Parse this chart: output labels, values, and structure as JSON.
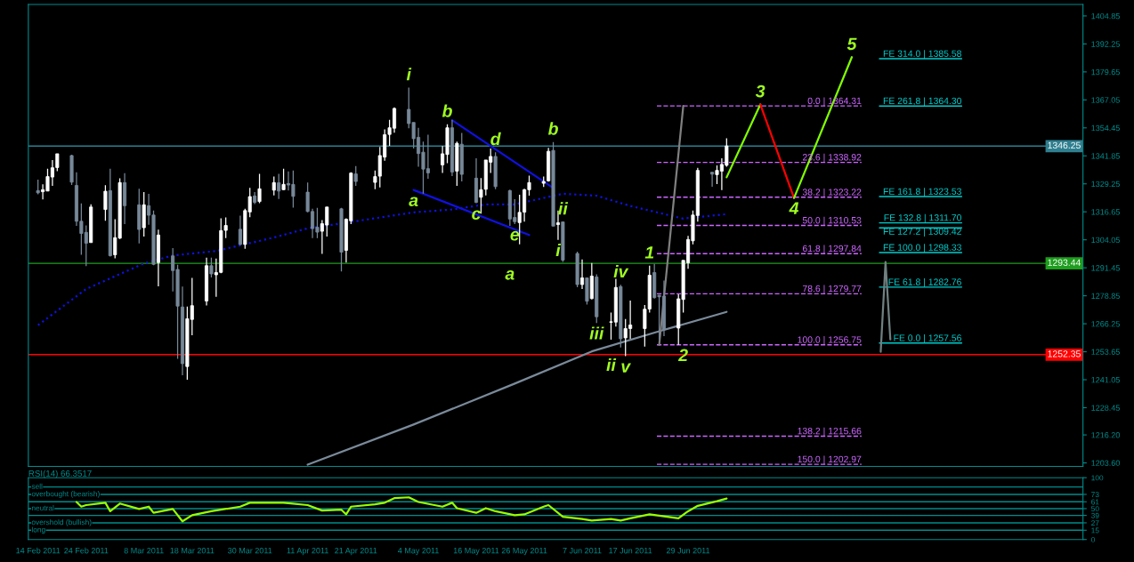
{
  "chart_data": [
    {
      "type": "candlestick",
      "tick_labels": "y",
      "x": [
        "2011-02-14",
        "2011-02-15",
        "2011-02-16",
        "2011-02-17",
        "2011-02-18",
        "2011-02-21",
        "2011-02-22",
        "2011-02-23",
        "2011-02-24",
        "2011-02-25",
        "2011-02-28",
        "2011-03-01",
        "2011-03-02",
        "2011-03-03",
        "2011-03-04",
        "2011-03-07",
        "2011-03-08",
        "2011-03-09",
        "2011-03-10",
        "2011-03-11",
        "2011-03-14",
        "2011-03-15",
        "2011-03-16",
        "2011-03-17",
        "2011-03-18",
        "2011-03-21",
        "2011-03-22",
        "2011-03-23",
        "2011-03-24",
        "2011-03-25",
        "2011-03-28",
        "2011-03-29",
        "2011-03-30",
        "2011-03-31",
        "2011-04-01",
        "2011-04-04",
        "2011-04-05",
        "2011-04-06",
        "2011-04-07",
        "2011-04-08",
        "2011-04-11",
        "2011-04-12",
        "2011-04-13",
        "2011-04-14",
        "2011-04-15",
        "2011-04-18",
        "2011-04-19",
        "2011-04-20",
        "2011-04-21",
        "2011-04-25",
        "2011-04-26",
        "2011-04-27",
        "2011-04-28",
        "2011-04-29",
        "2011-05-02",
        "2011-05-03",
        "2011-05-04",
        "2011-05-05",
        "2011-05-06",
        "2011-05-09",
        "2011-05-10",
        "2011-05-11",
        "2011-05-12",
        "2011-05-13",
        "2011-05-16",
        "2011-05-17",
        "2011-05-18",
        "2011-05-19",
        "2011-05-20",
        "2011-05-23",
        "2011-05-24",
        "2011-05-25",
        "2011-05-26",
        "2011-05-27",
        "2011-05-30",
        "2011-05-31",
        "2011-06-01",
        "2011-06-02",
        "2011-06-03",
        "2011-06-06",
        "2011-06-07",
        "2011-06-08",
        "2011-06-09",
        "2011-06-10",
        "2011-06-13",
        "2011-06-14",
        "2011-06-15",
        "2011-06-16",
        "2011-06-17",
        "2011-06-20",
        "2011-06-21",
        "2011-06-22",
        "2011-06-23",
        "2011-06-24",
        "2011-06-27",
        "2011-06-28",
        "2011-06-29",
        "2011-06-30",
        "2011-07-01",
        "2011-07-04",
        "2011-07-05",
        "2011-07-06",
        "2011-07-07"
      ],
      "ohlc": [
        [
          1326.2,
          1331.1,
          1324.5,
          1325.2
        ],
        [
          1325.7,
          1329.0,
          1322.2,
          1326.6
        ],
        [
          1326.0,
          1336.1,
          1326.0,
          1332.5
        ],
        [
          1332.3,
          1340.0,
          1328.3,
          1336.5
        ],
        [
          1336.6,
          1342.8,
          1335.0,
          1342.8
        ],
        [
          1342.0,
          1342.4,
          1328.7,
          1330.0
        ],
        [
          1328.5,
          1334.5,
          1310.3,
          1312.4
        ],
        [
          1312.4,
          1320.4,
          1297.3,
          1306.9
        ],
        [
          1307.4,
          1310.5,
          1292.2,
          1302.5
        ],
        [
          1302.8,
          1320.0,
          1302.8,
          1318.8
        ],
        [
          1317.7,
          1328.6,
          1312.6,
          1325.9
        ],
        [
          1326.2,
          1336.1,
          1296.5,
          1296.9
        ],
        [
          1297.3,
          1313.3,
          1295.7,
          1305.0
        ],
        [
          1304.8,
          1331.7,
          1304.4,
          1329.8
        ],
        [
          1329.8,
          1334.1,
          1311.1,
          1319.4
        ],
        [
          1319.8,
          1327.0,
          1302.4,
          1308.7
        ],
        [
          1309.5,
          1325.5,
          1305.5,
          1319.8
        ],
        [
          1319.4,
          1324.7,
          1310.8,
          1315.1
        ],
        [
          1315.2,
          1317.2,
          1292.6,
          1293.0
        ],
        [
          1293.8,
          1308.6,
          1283.1,
          1306.2
        ],
        [
          1296.8,
          1300.3,
          1280.8,
          1290.2
        ],
        [
          1290.7,
          1292.8,
          1250.5,
          1274.2
        ],
        [
          1273.8,
          1283.0,
          1243.1,
          1248.3
        ],
        [
          1247.0,
          1274.0,
          1241.1,
          1268.5
        ],
        [
          1268.2,
          1286.9,
          1261.1,
          1274.4
        ],
        [
          1276.5,
          1296.0,
          1274.5,
          1292.4
        ],
        [
          1292.4,
          1296.0,
          1287.1,
          1288.7
        ],
        [
          1288.3,
          1295.6,
          1278.4,
          1289.3
        ],
        [
          1289.4,
          1313.7,
          1289.0,
          1308.2
        ],
        [
          1308.3,
          1314.1,
          1304.8,
          1310.5
        ],
        [
          1308.8,
          1314.9,
          1301.6,
          1302.0
        ],
        [
          1302.0,
          1318.0,
          1300.0,
          1317.2
        ],
        [
          1316.6,
          1327.4,
          1314.2,
          1323.5
        ],
        [
          1323.8,
          1325.5,
          1320.1,
          1320.9
        ],
        [
          1321.3,
          1333.7,
          1320.5,
          1327.0
        ],
        [
          1326.4,
          1332.5,
          1324.0,
          1329.8
        ],
        [
          1329.7,
          1333.7,
          1322.4,
          1326.0
        ],
        [
          1326.6,
          1336.1,
          1326.4,
          1329.0
        ],
        [
          1329.4,
          1334.9,
          1326.2,
          1328.7
        ],
        [
          1329.0,
          1335.3,
          1318.5,
          1323.6
        ],
        [
          1325.5,
          1329.8,
          1316.4,
          1316.8
        ],
        [
          1316.8,
          1318.0,
          1304.8,
          1309.1
        ],
        [
          1309.7,
          1318.4,
          1304.8,
          1307.5
        ],
        [
          1307.9,
          1312.9,
          1297.7,
          1311.3
        ],
        [
          1310.7,
          1318.8,
          1305.5,
          1318.8
        ],
        [
          1318.0,
          1318.4,
          1289.8,
          1298.5
        ],
        [
          1299.3,
          1313.7,
          1293.8,
          1313.3
        ],
        [
          1312.6,
          1334.5,
          1311.1,
          1334.1
        ],
        [
          1333.7,
          1337.3,
          1328.3,
          1330.3
        ],
        [
          1329.9,
          1335.3,
          1326.8,
          1332.5
        ],
        [
          1332.7,
          1345.9,
          1327.6,
          1342.0
        ],
        [
          1341.3,
          1353.8,
          1339.7,
          1351.4
        ],
        [
          1351.5,
          1358.1,
          1346.4,
          1354.5
        ],
        [
          1354.3,
          1363.7,
          1352.3,
          1363.2
        ],
        [
          1362.8,
          1372.6,
          1354.3,
          1356.4
        ],
        [
          1356.9,
          1356.9,
          1345.2,
          1349.6
        ],
        [
          1350.2,
          1354.5,
          1337.0,
          1342.9
        ],
        [
          1343.5,
          1348.3,
          1324.8,
          1335.9
        ],
        [
          1336.1,
          1351.4,
          1331.5,
          1334.2
        ],
        [
          1337.8,
          1346.3,
          1334.2,
          1342.8
        ],
        [
          1342.5,
          1356.1,
          1338.6,
          1354.5
        ],
        [
          1354.5,
          1358.1,
          1332.7,
          1334.6
        ],
        [
          1335.0,
          1348.3,
          1328.3,
          1347.5
        ],
        [
          1347.1,
          1352.2,
          1330.3,
          1333.5
        ],
        [
          1331.8,
          1340.8,
          1320.5,
          1320.9
        ],
        [
          1323.2,
          1331.8,
          1315.8,
          1326.6
        ],
        [
          1326.8,
          1340.0,
          1324.0,
          1340.0
        ],
        [
          1339.0,
          1345.2,
          1334.2,
          1341.6
        ],
        [
          1341.6,
          1343.5,
          1326.8,
          1328.0
        ],
        [
          1326.2,
          1326.6,
          1310.3,
          1313.4
        ],
        [
          1314.1,
          1322.3,
          1311.1,
          1312.2
        ],
        [
          1311.8,
          1324.3,
          1302.0,
          1316.4
        ],
        [
          1316.5,
          1327.0,
          1312.2,
          1326.6
        ],
        [
          1326.6,
          1332.9,
          1323.9,
          1329.8
        ],
        [
          1329.5,
          1332.5,
          1327.8,
          1330.3
        ],
        [
          1330.6,
          1345.5,
          1330.2,
          1343.9
        ],
        [
          1344.3,
          1348.1,
          1310.2,
          1310.2
        ],
        [
          1310.9,
          1317.2,
          1304.0,
          1311.7
        ],
        [
          1312.1,
          1312.1,
          1294.1,
          1294.9
        ],
        [
          1297.9,
          1298.7,
          1282.7,
          1283.9
        ],
        [
          1283.9,
          1295.2,
          1281.9,
          1286.9
        ],
        [
          1286.9,
          1286.9,
          1274.9,
          1276.4
        ],
        [
          1277.6,
          1293.6,
          1277.2,
          1287.7
        ],
        [
          1287.3,
          1288.5,
          1266.6,
          1269.4
        ],
        [
          1267.0,
          1271.3,
          1259.1,
          1267.0
        ],
        [
          1267.0,
          1286.5,
          1265.0,
          1282.6
        ],
        [
          1283.0,
          1283.8,
          1255.6,
          1259.5
        ],
        [
          1259.9,
          1268.4,
          1251.7,
          1264.1
        ],
        [
          1264.1,
          1276.7,
          1259.5,
          1265.7
        ],
        [
          1264.1,
          1274.7,
          1256.0,
          1272.8
        ],
        [
          1272.9,
          1292.4,
          1271.3,
          1288.1
        ],
        [
          1289.3,
          1293.2,
          1277.6,
          1278.0
        ],
        [
          1279.1,
          1279.1,
          1259.1,
          1278.4
        ],
        [
          1278.7,
          1285.7,
          1260.7,
          1263.5
        ],
        [
          1264.3,
          1279.5,
          1256.8,
          1277.5
        ],
        [
          1277.2,
          1294.8,
          1271.3,
          1294.8
        ],
        [
          1293.7,
          1305.8,
          1291.0,
          1304.2
        ],
        [
          1303.6,
          1317.2,
          1302.0,
          1315.2
        ],
        [
          1315.0,
          1336.5,
          1312.2,
          1335.3
        ],
        [
          1334.5,
          1334.5,
          1327.9,
          1333.6
        ],
        [
          1333.4,
          1337.6,
          1329.1,
          1335.3
        ],
        [
          1335.0,
          1340.8,
          1326.4,
          1338.0
        ],
        [
          1337.6,
          1349.8,
          1337.0,
          1346.3
        ]
      ],
      "series": [
        {
          "type": "line",
          "color": "#1010e0",
          "line_style": "dotted",
          "x": [
            "2011-02-14",
            "2011-02-24",
            "2011-03-08",
            "2011-03-14",
            "2011-03-23",
            "2011-04-04",
            "2011-04-11",
            "2011-04-20",
            "2011-05-03",
            "2011-05-11",
            "2011-05-18",
            "2011-05-24",
            "2011-06-03",
            "2011-06-10",
            "2011-06-17",
            "2011-06-28",
            "2011-07-07"
          ],
          "values": [
            1265.6,
            1281.9,
            1293.4,
            1297.0,
            1299.0,
            1305.1,
            1309.2,
            1312.1,
            1316.4,
            1317.7,
            1320.0,
            1320.0,
            1324.8,
            1323.9,
            1319.3,
            1313.6,
            1315.6
          ]
        },
        {
          "type": "line",
          "color": "#7a8a9a",
          "line_style": "solid",
          "x": [
            "2011-04-11",
            "2011-05-03",
            "2011-05-24",
            "2011-06-09",
            "2011-06-23",
            "2011-07-07"
          ],
          "values": [
            1202.8,
            1220.9,
            1239.3,
            1253.8,
            1262.9,
            1271.6
          ]
        },
        {
          "type": "line",
          "color": "#1010e0",
          "line_style": "solid",
          "x": [
            "2011-05-11",
            "2011-06-01"
          ],
          "values": [
            1357.9,
            1327.4
          ]
        },
        {
          "type": "line",
          "color": "#1010e0",
          "line_style": "solid",
          "x": [
            "2011-05-03",
            "2011-05-27"
          ],
          "values": [
            1326.5,
            1306.2
          ]
        },
        {
          "type": "line",
          "color": "#808080",
          "line_style": "solid",
          "x": [
            "2011-06-23",
            "2011-06-28"
          ],
          "values": [
            1256.75,
            1364.31
          ]
        },
        {
          "type": "line",
          "color": "#80ff00",
          "line_style": "solid",
          "x": [
            "2011-07-07",
            "2011-07-14"
          ],
          "values": [
            1332.2,
            1365.0
          ]
        },
        {
          "type": "line",
          "color": "#ff0000",
          "line_style": "solid",
          "x": [
            "2011-07-14",
            "2011-07-21"
          ],
          "values": [
            1365.0,
            1322.9
          ]
        },
        {
          "type": "line",
          "color": "#80ff00",
          "line_style": "solid",
          "x": [
            "2011-07-21",
            "2011-08-02"
          ],
          "values": [
            1322.9,
            1386.3
          ]
        },
        {
          "type": "line",
          "color": "#708080",
          "line_style": "solid",
          "x": [
            "2011-08-08",
            "2011-08-09",
            "2011-08-10"
          ],
          "values": [
            1253.6,
            1294.1,
            1259.2
          ]
        }
      ],
      "xlim": [
        "2011-02-12",
        "2011-09-19"
      ],
      "ylim": [
        1202,
        1410
      ],
      "yticks": [
        1404.85,
        1392.25,
        1379.65,
        1367.05,
        1354.45,
        1341.85,
        1329.25,
        1316.65,
        1304.05,
        1291.45,
        1278.85,
        1266.25,
        1253.65,
        1241.05,
        1228.45,
        {
          "value": 1216.2,
          "label": "1216.20"
        },
        {
          "value": 1203.6,
          "label": "1203.60"
        }
      ],
      "ref_lines": [
        {
          "axis": "y",
          "value": 1346.25,
          "label": "1346.25",
          "color": "#2f7f8f"
        },
        {
          "axis": "y",
          "value": 1293.44,
          "label": "1293.44",
          "color": "#1e9e1e"
        },
        {
          "axis": "y",
          "value": 1252.35,
          "label": "1252.35",
          "color": "#ff0000"
        },
        {
          "axis": "y",
          "value": 1364.31,
          "label": "0.0 | 1364.31",
          "color": "#cc66ff",
          "line_style": "dashed"
        },
        {
          "axis": "y",
          "value": 1338.92,
          "label": "23.6 | 1338.92",
          "color": "#cc66ff",
          "line_style": "dashed"
        },
        {
          "axis": "y",
          "value": 1323.22,
          "label": "38.2 | 1323.22",
          "color": "#cc66ff",
          "line_style": "dashed"
        },
        {
          "axis": "y",
          "value": 1310.53,
          "label": "50.0 | 1310.53",
          "color": "#cc66ff",
          "line_style": "dashed"
        },
        {
          "axis": "y",
          "value": 1297.84,
          "label": "61.8 | 1297.84",
          "color": "#cc66ff",
          "line_style": "dashed"
        },
        {
          "axis": "y",
          "value": 1279.77,
          "label": "78.6 | 1279.77",
          "color": "#cc66ff",
          "line_style": "dashed"
        },
        {
          "axis": "y",
          "value": 1256.75,
          "label": "100.0 | 1256.75",
          "color": "#cc66ff",
          "line_style": "dashed"
        },
        {
          "axis": "y",
          "value": 1215.66,
          "label": "138.2 | 1215.66",
          "color": "#cc66ff",
          "line_style": "dashed"
        },
        {
          "axis": "y",
          "value": 1202.97,
          "label": "150.0 | 1202.97",
          "color": "#cc66ff",
          "line_style": "dashed"
        },
        {
          "axis": "y",
          "value": 1385.58,
          "label": "FE 314.0 | 1385.58",
          "color": "#00cccc",
          "line_style": "solid"
        },
        {
          "axis": "y",
          "value": 1364.3,
          "label": "FE 261,8 | 1364.30",
          "color": "#00cccc",
          "line_style": "solid"
        },
        {
          "axis": "y",
          "value": 1323.53,
          "label": "FE 161.8 | 1323.53",
          "color": "#00cccc",
          "line_style": "solid"
        },
        {
          "axis": "y",
          "value": 1311.7,
          "label": "FE 132.8 | 1311.70",
          "color": "#00cccc",
          "line_style": "solid"
        },
        {
          "axis": "y",
          "value": 1309.42,
          "label": "FE 127.2 | 1309.42",
          "color": "#00cccc",
          "line_style": "solid"
        },
        {
          "axis": "y",
          "value": 1298.33,
          "label": "FE 100.0 | 1298.33",
          "color": "#00cccc",
          "line_style": "solid"
        },
        {
          "axis": "y",
          "value": 1282.76,
          "label": "FE 61.8 | 1282.76",
          "color": "#00cccc",
          "line_style": "solid"
        },
        {
          "axis": "y",
          "value": 1257.56,
          "label": "FE 0.0 | 1257.56",
          "color": "#00cccc",
          "line_style": "solid"
        }
      ],
      "annotations": [
        {
          "text": "i",
          "x": "2011-05-02",
          "y": 1372.6
        },
        {
          "text": "b",
          "x": "2011-05-10",
          "y": 1356.1
        },
        {
          "text": "d",
          "x": "2011-05-20",
          "y": 1343.5
        },
        {
          "text": "a",
          "x": "2011-05-03",
          "y": 1326.5
        },
        {
          "text": "c",
          "x": "2011-05-16",
          "y": 1320.5
        },
        {
          "text": "e",
          "x": "2011-05-24",
          "y": 1311.1
        },
        {
          "text": "b",
          "x": "2011-06-01",
          "y": 1348.1
        },
        {
          "text": "a",
          "x": "2011-05-23",
          "y": 1293.44
        },
        {
          "text": "ii",
          "x": "2011-06-03",
          "y": 1312.1
        },
        {
          "text": "i",
          "x": "2011-06-02",
          "y": 1304.0
        },
        {
          "text": "iv",
          "x": "2011-06-15",
          "y": 1283.8
        },
        {
          "text": "iii",
          "x": "2011-06-10",
          "y": 1266.6
        },
        {
          "text": "v",
          "x": "2011-06-16",
          "y": 1251.7
        },
        {
          "text": "ii",
          "x": "2011-06-13",
          "y": 1252.35
        },
        {
          "text": "1",
          "x": "2011-06-21",
          "y": 1292.4
        },
        {
          "text": "2",
          "x": "2011-06-28",
          "y": 1256.75
        },
        {
          "text": "3",
          "x": "2011-07-14",
          "y": 1365.0
        },
        {
          "text": "4",
          "x": "2011-07-21",
          "y": 1322.9
        },
        {
          "text": "5",
          "x": "2011-08-02",
          "y": 1386.3
        }
      ]
    },
    {
      "type": "line",
      "title": "RSI(14) 66.3517",
      "series": [
        {
          "color": "#99ff00",
          "x": [
            "2011-02-22",
            "2011-02-23",
            "2011-02-24",
            "2011-02-28",
            "2011-03-01",
            "2011-03-03",
            "2011-03-07",
            "2011-03-09",
            "2011-03-10",
            "2011-03-14",
            "2011-03-16",
            "2011-03-18",
            "2011-03-22",
            "2011-03-28",
            "2011-03-30",
            "2011-04-06",
            "2011-04-11",
            "2011-04-14",
            "2011-04-18",
            "2011-04-19",
            "2011-04-20",
            "2011-04-25",
            "2011-04-27",
            "2011-04-29",
            "2011-05-02",
            "2011-05-04",
            "2011-05-09",
            "2011-05-11",
            "2011-05-12",
            "2011-05-16",
            "2011-05-18",
            "2011-05-20",
            "2011-05-24",
            "2011-05-26",
            "2011-05-30",
            "2011-05-31",
            "2011-06-03",
            "2011-06-07",
            "2011-06-09",
            "2011-06-13",
            "2011-06-15",
            "2011-06-17",
            "2011-06-21",
            "2011-06-27",
            "2011-06-29",
            "2011-07-01",
            "2011-07-05",
            "2011-07-07"
          ],
          "values": [
            60.7,
            53.2,
            55.7,
            59.5,
            45.7,
            58.2,
            49.4,
            53.2,
            43.2,
            49.4,
            29.4,
            39.4,
            45.7,
            53.2,
            59.5,
            59.5,
            55.7,
            46.9,
            48.2,
            40.7,
            53.2,
            57.0,
            59.5,
            67.0,
            68.3,
            60.7,
            53.2,
            59.5,
            50.7,
            43.2,
            50.7,
            45.7,
            39.4,
            40.7,
            53.2,
            55.7,
            36.9,
            33.1,
            30.6,
            33.1,
            30.6,
            34.4,
            40.7,
            34.4,
            45.7,
            54.5,
            62.0,
            66.4
          ]
        }
      ],
      "xlim": [
        "2011-02-12",
        "2011-09-19"
      ],
      "xticks": [
        {
          "value": "2011-02-14",
          "label": "14 Feb 2011"
        },
        {
          "value": "2011-02-24",
          "label": "24 Feb 2011"
        },
        {
          "value": "2011-03-08",
          "label": "8 Mar 2011"
        },
        {
          "value": "2011-03-18",
          "label": "18 Mar 2011"
        },
        {
          "value": "2011-03-30",
          "label": "30 Mar 2011"
        },
        {
          "value": "2011-04-11",
          "label": "11 Apr 2011"
        },
        {
          "value": "2011-04-21",
          "label": "21 Apr 2011"
        },
        {
          "value": "2011-05-04",
          "label": "4 May 2011"
        },
        {
          "value": "2011-05-16",
          "label": "16 May 2011"
        },
        {
          "value": "2011-05-26",
          "label": "26 May 2011"
        },
        {
          "value": "2011-06-07",
          "label": "7 Jun 2011"
        },
        {
          "value": "2011-06-17",
          "label": "17 Jun 2011"
        },
        {
          "value": "2011-06-29",
          "label": "29 Jun 2011"
        }
      ],
      "ylim": [
        0,
        100
      ],
      "yticks": [
        100,
        73,
        61,
        50,
        39,
        27,
        15,
        0
      ],
      "ref_lines": [
        {
          "axis": "y",
          "value": 85,
          "label": "sell",
          "color": "#008b8b"
        },
        {
          "axis": "y",
          "value": 73,
          "label": "overbought (bearish)",
          "color": "#008b8b"
        },
        {
          "axis": "y",
          "value": 61,
          "color": "#008b8b"
        },
        {
          "axis": "y",
          "value": 50,
          "label": "neutral",
          "color": "#008b8b"
        },
        {
          "axis": "y",
          "value": 39,
          "color": "#008b8b"
        },
        {
          "axis": "y",
          "value": 27,
          "label": "overshold (bullish)",
          "color": "#008b8b"
        },
        {
          "axis": "y",
          "value": 15,
          "label": "long",
          "color": "#008b8b"
        }
      ]
    }
  ]
}
